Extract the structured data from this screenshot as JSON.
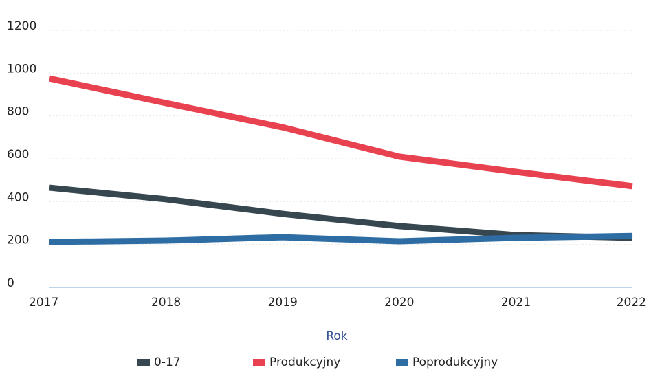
{
  "chart_data": {
    "type": "line",
    "x_label": "Rok",
    "x": [
      2017,
      2018,
      2019,
      2020,
      2021,
      2022
    ],
    "xlim": [
      2017,
      2022
    ],
    "xticks": [
      2017,
      2018,
      2019,
      2020,
      2021,
      2022
    ],
    "ylim": [
      0,
      1200
    ],
    "yticks": [
      0,
      200,
      400,
      600,
      800,
      1000,
      1200
    ],
    "grid": true,
    "legend": "bottom",
    "series": [
      {
        "name": "0-17",
        "color": "#37474f",
        "values": [
          465,
          411,
          343,
          286,
          244,
          231
        ]
      },
      {
        "name": "Produkcyjny",
        "color": "#e8414f",
        "values": [
          975,
          860,
          747,
          610,
          539,
          472
        ]
      },
      {
        "name": "Poprodukcyjny",
        "color": "#2e6da4",
        "values": [
          212,
          218,
          234,
          215,
          231,
          240
        ]
      }
    ]
  }
}
